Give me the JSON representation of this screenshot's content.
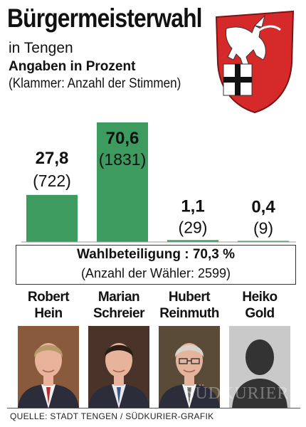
{
  "title": "Bürgermeisterwahl",
  "subtitle": "in Tengen",
  "subheading": "Angaben in Prozent",
  "note": "(Klammer: Anzahl der Stimmen)",
  "colors": {
    "bar": "#3e9b5f",
    "crest_red": "#d62a2a"
  },
  "chart_data": {
    "type": "bar",
    "categories": [
      "Robert Hein",
      "Marian Schreier",
      "Hubert Reinmuth",
      "Heiko Gold"
    ],
    "values": [
      27.8,
      70.6,
      1.1,
      0.4
    ],
    "value_labels": [
      "27,8",
      "70,6",
      "1,1",
      "0,4"
    ],
    "votes": [
      722,
      1831,
      29,
      9
    ],
    "vote_labels": [
      "(722)",
      "(1831)",
      "(29)",
      "(9)"
    ],
    "ylim": [
      0,
      70.6
    ],
    "grid": false
  },
  "turnout": "Wahlbeteiligung : 70,3 %",
  "voters": "(Anzahl der Wähler: 2599)",
  "candidates": [
    {
      "name": "Robert\nHein"
    },
    {
      "name": "Marian\nSchreier"
    },
    {
      "name": "Hubert\nReinmuth"
    },
    {
      "name": "Heiko\nGold"
    }
  ],
  "watermark": "SÜDKURIER",
  "source": "QUELLE: STADT TENGEN  /  SÜDKURIER-GRAFIK"
}
